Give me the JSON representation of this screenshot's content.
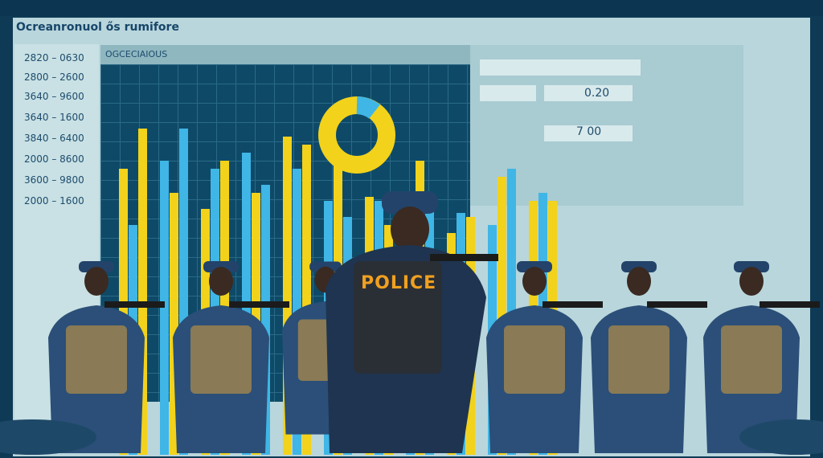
{
  "header": {
    "title": "Ocreanronuol ős rumifore"
  },
  "sidebar": {
    "ticks": [
      "2820 – 0630",
      "2800 – 2600",
      "3640 – 9600",
      "3640 – 1600",
      "3840 – 6400",
      "2000 – 8600",
      "3600 – 9800",
      "2000 – 1600"
    ]
  },
  "chart": {
    "header": "OGCECIAIOUS"
  },
  "summary": {
    "value_1": "0.20",
    "value_2": "7 00"
  },
  "vest_label": "POLICE",
  "colors": {
    "background": "#0e3a55",
    "bar_yellow": "#f2d21b",
    "bar_blue": "#3fb6e6",
    "uniform": "#2b4f78"
  }
}
